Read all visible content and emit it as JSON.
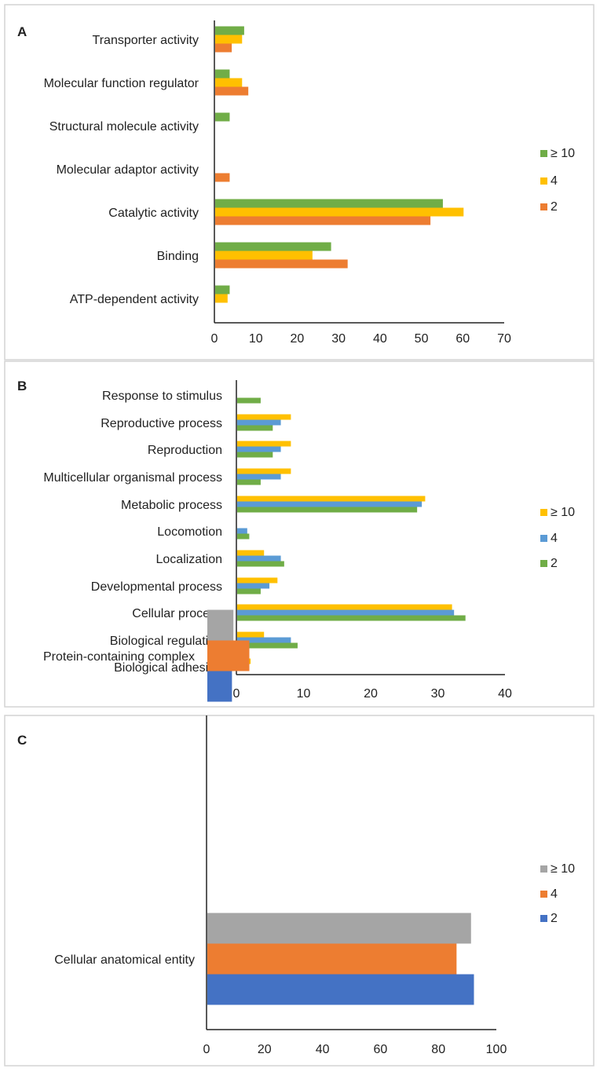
{
  "chart_data": [
    {
      "type": "bar",
      "orientation": "horizontal",
      "panel_label": "A",
      "categories": [
        "Transporter activity",
        "Molecular function regulator",
        "Structural molecule activity",
        "Molecular adaptor activity",
        "Catalytic activity",
        "Binding",
        "ATP-dependent activity"
      ],
      "series": [
        {
          "name": "≥ 10",
          "color": "#70ad47",
          "values": [
            7,
            3.5,
            3.5,
            0,
            55,
            28,
            3.5
          ]
        },
        {
          "name": "4",
          "color": "#ffc000",
          "values": [
            6.5,
            6.5,
            0,
            0,
            60,
            23.5,
            3
          ]
        },
        {
          "name": "2",
          "color": "#ed7d31",
          "values": [
            4,
            8,
            0,
            3.5,
            52,
            32,
            0
          ]
        }
      ],
      "xlim": [
        0,
        70
      ],
      "xticks": [
        "0",
        "10",
        "20",
        "30",
        "40",
        "50",
        "60",
        "70"
      ],
      "title": "",
      "xlabel": "",
      "ylabel": "",
      "legend": "right"
    },
    {
      "type": "bar",
      "orientation": "horizontal",
      "panel_label": "B",
      "categories": [
        "Response to stimulus",
        "Reproductive process",
        "Reproduction",
        "Multicellular organismal process",
        "Metabolic process",
        "Locomotion",
        "Localization",
        "Developmental process",
        "Cellular process",
        "Biological regulation",
        "Biological adhesion"
      ],
      "series": [
        {
          "name": "≥ 10",
          "color": "#ffc000",
          "values": [
            0,
            8,
            8,
            8,
            28,
            0,
            4,
            6,
            32,
            4,
            2
          ]
        },
        {
          "name": "4",
          "color": "#5b9bd5",
          "values": [
            0,
            6.5,
            6.5,
            6.5,
            27.5,
            1.5,
            6.5,
            4.8,
            32.3,
            8,
            0
          ]
        },
        {
          "name": "2",
          "color": "#70ad47",
          "values": [
            3.5,
            5.3,
            5.3,
            3.5,
            26.8,
            1.8,
            7,
            3.5,
            34,
            9,
            0
          ]
        }
      ],
      "xlim": [
        0,
        40
      ],
      "xticks": [
        "0",
        "10",
        "20",
        "30",
        "40"
      ],
      "title": "",
      "xlabel": "",
      "ylabel": "",
      "legend": "right"
    },
    {
      "type": "bar",
      "orientation": "horizontal",
      "panel_label": "C",
      "categories": [
        "Protein-containing complex",
        "Cellular anatomical entity"
      ],
      "series": [
        {
          "name": "≥ 10",
          "color": "#a5a5a5",
          "values": [
            9,
            91
          ]
        },
        {
          "name": "4",
          "color": "#ed7d31",
          "values": [
            14.5,
            86
          ]
        },
        {
          "name": "2",
          "color": "#4472c4",
          "values": [
            8.5,
            92
          ]
        }
      ],
      "xlim": [
        0,
        100
      ],
      "xticks": [
        "0",
        "20",
        "40",
        "60",
        "80",
        "100"
      ],
      "title": "",
      "xlabel": "",
      "ylabel": "",
      "legend": "right"
    }
  ]
}
